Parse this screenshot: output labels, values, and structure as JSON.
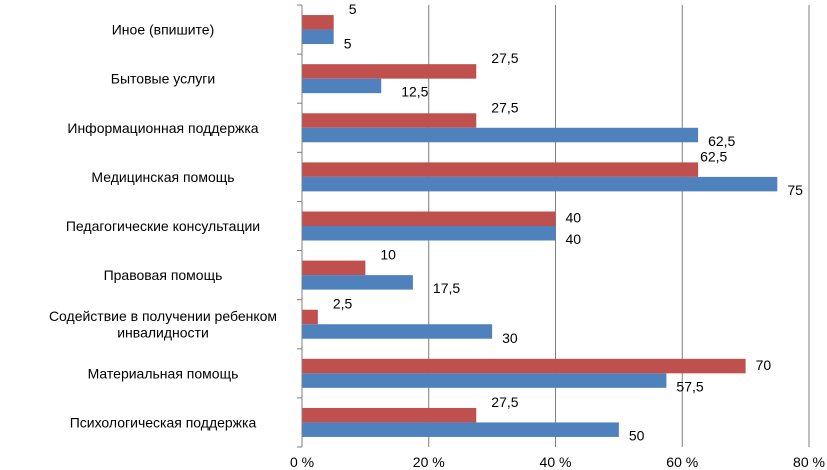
{
  "chart_data": {
    "type": "bar",
    "orientation": "horizontal",
    "categories": [
      [
        "Иное (впишите)"
      ],
      [
        "Бытовые услуги"
      ],
      [
        "Информационная поддержка"
      ],
      [
        "Медицинская помощь"
      ],
      [
        "Педагогические консультации"
      ],
      [
        "Правовая помощь"
      ],
      [
        "Содействие в получении ребенком",
        "инвалидности"
      ],
      [
        "Материальная помощь"
      ],
      [
        "Психологическая поддержка"
      ]
    ],
    "series": [
      {
        "color": "#c0504d",
        "values": [
          5,
          27.5,
          27.5,
          62.5,
          40,
          10,
          2.5,
          70,
          27.5
        ],
        "labels": [
          "5",
          "27,5",
          "27,5",
          "62,5",
          "40",
          "10",
          "2,5",
          "70",
          "27,5"
        ]
      },
      {
        "color": "#4f81bd",
        "values": [
          5,
          12.5,
          62.5,
          75,
          40,
          17.5,
          30,
          57.5,
          50
        ],
        "labels": [
          "5",
          "12,5",
          "62,5",
          "75",
          "40",
          "17,5",
          "30",
          "57,5",
          "50"
        ]
      }
    ],
    "xlim": [
      0,
      80
    ],
    "xticks": [
      0,
      20,
      40,
      60,
      80
    ],
    "xtick_labels": [
      "0 %",
      "20 %",
      "40 %",
      "60 %",
      "80 %"
    ],
    "grid": true,
    "legend": "none"
  }
}
